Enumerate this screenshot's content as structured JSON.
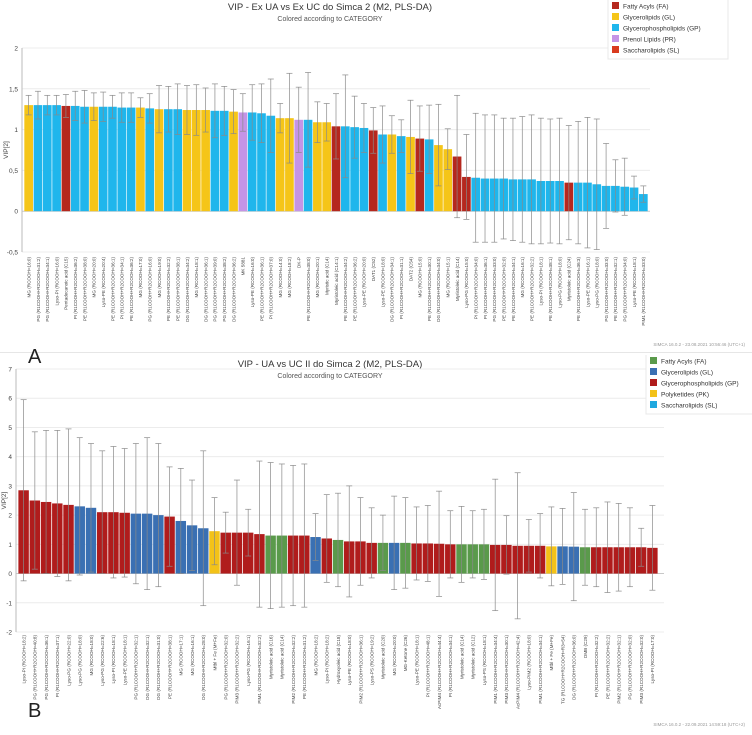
{
  "chart_data": [
    {
      "type": "bar",
      "panel_label": "A",
      "title": "VIP - Ex UA vs Ex UC do Simca 2 (M2, PLS-DA)",
      "subtitle": "Colored according to CATEGORY",
      "ylabel": "VIP[2]",
      "ylim": [
        -0.5,
        2
      ],
      "yticks": [
        -0.5,
        0,
        0.5,
        1,
        1.5,
        2
      ],
      "ytick_labels": [
        "-0,5",
        "0",
        "0,5",
        "1",
        "1,5",
        "2"
      ],
      "footer": "SIMCA 16.0.2 - 23.08.2021 10:56:46 (UTC+1)",
      "legend_position": "top-right",
      "legend": [
        {
          "key": "FA",
          "label": "Fatty Acyls (FA)",
          "color": "#b5281e"
        },
        {
          "key": "GL",
          "label": "Glycerolipids (GL)",
          "color": "#f5c518"
        },
        {
          "key": "GP",
          "label": "Glycerophospholipids (GP)",
          "color": "#1fb6ec"
        },
        {
          "key": "PR",
          "label": "Prenol Lipids (PR)",
          "color": "#c594e6"
        },
        {
          "key": "SL",
          "label": "Saccharolipids (SL)",
          "color": "#d93b1f"
        }
      ],
      "categories": [
        "MG (RCOOH=16:0)",
        "PG (R1COOH+R2COOH=31:2)",
        "PG (R1COOH+R2COOH=34:1)",
        "Lyso-PI (RCOOH=16:0)",
        "Pentadecanoic acid (C15)",
        "PI (R1COOH+R2COOH=36:2)",
        "PE (R1COOH+R2COOH=38:0)",
        "MG (RCOOH=20:0)",
        "Lyso-PE (RCOOH=20:4)",
        "PE (R1COOH+R2COOH=36:1)",
        "PI (R1COOH+R2COOH=34:1)",
        "PE (R1COOH+R2COOH=36:2)",
        "MG (RCOOH=17:0)",
        "PG (R1COOH+R2COOH=16:0)",
        "MG (RCOOH=19:0)",
        "PE (R1COOH+R2COOH=32:2)",
        "PE (R1COOH+R2COOH=38:1)",
        "DG (R1COOH+R2COOH=34:2)",
        "MG (RCOOH=18:1)",
        "DG (R1COOH+R2COOH=36:1)",
        "PG (R1COOH+R2COOH=39:0)",
        "PG (R1COOH+R2COOH=38:2)",
        "DG (R1COOH+R2COOH=36:2)",
        "MK 5881",
        "Lyso-PE (RCOOH=16:0)",
        "PE (R1COOH+R2COOH=36:1)",
        "PI (R1COOH+R2COOH=37:0)",
        "MG (RCOOH=14:0)",
        "MG (RCOOH=18:2)",
        "DK-P",
        "PE (R1COOH+R2COOH=38:0)",
        "MG (RCOOH=20:1)",
        "Myristic acid (C14)",
        "Myristoleic acid (C14:1)",
        "PE (R1COOH+R2COOH=34:2)",
        "PE (R1COOH+R2COOH=36:2)",
        "Lyso-PE (RCOOH=20:0)",
        "DAT1 (C52)",
        "Lyso-PE (RCOOH=18:0)",
        "DG (R1COOH+R2COOH=34:1)",
        "PI (R1COOH+R2COOH=31:1)",
        "DAT2 (C54)",
        "MG (RCOOH=15:0)",
        "PE (R1COOH+R2COOH=30:1)",
        "DG (R1COOH+R2COOH=34:0)",
        "MG (RCOOH=15:1)",
        "Myristoleic acid (C14)",
        "Lyso-PG (RCOOH=15:0)",
        "PI (R1COOH+R2COOH=34:0)",
        "PI (R1COOH+R2COOH=36:1)",
        "PG (R1COOH+R2COOH=33:0)",
        "PE (R1COOH+R2COOH=32:0)",
        "PE (R1COOH+R2COOH=34:1)",
        "MG (RCOOH=16:1)",
        "PE (R1COOH+R2COOH=32:2)",
        "Lyso-PI (RCOOH=18:1)",
        "PE (R1COOH+R2COOH=38:1)",
        "Lyso-PG (RCOOH=18:0)",
        "Myristoleic acid (C24)",
        "PE (R1COOH+R2COOH=36:3)",
        "Lyso-PE (RCOOH=16:1)",
        "Lyso-PG (RCOOH=18:0)",
        "PG (R1COOH+R2COOH=33:0)",
        "PE (R1COOH+R2COOH=32:1)",
        "PG (R1COOH+R2COOH=34:0)",
        "Lyso-PE (RCOOH=18:1)",
        "PIM1 (R1COOH+R2COOH=33:0)"
      ],
      "values": [
        1.3,
        1.3,
        1.3,
        1.3,
        1.29,
        1.29,
        1.28,
        1.28,
        1.28,
        1.28,
        1.27,
        1.27,
        1.27,
        1.26,
        1.25,
        1.25,
        1.25,
        1.24,
        1.24,
        1.24,
        1.23,
        1.23,
        1.22,
        1.21,
        1.21,
        1.2,
        1.17,
        1.14,
        1.14,
        1.12,
        1.12,
        1.09,
        1.09,
        1.04,
        1.04,
        1.03,
        1.02,
        0.99,
        0.94,
        0.94,
        0.92,
        0.91,
        0.89,
        0.88,
        0.81,
        0.76,
        0.67,
        0.42,
        0.41,
        0.4,
        0.4,
        0.4,
        0.39,
        0.39,
        0.39,
        0.37,
        0.37,
        0.37,
        0.35,
        0.35,
        0.35,
        0.33,
        0.31,
        0.31,
        0.3,
        0.29,
        0.21
      ],
      "errors": [
        0.12,
        0.17,
        0.12,
        0.12,
        0.14,
        0.18,
        0.2,
        0.17,
        0.18,
        0.14,
        0.18,
        0.18,
        0.12,
        0.18,
        0.29,
        0.28,
        0.31,
        0.3,
        0.31,
        0.27,
        0.33,
        0.3,
        0.27,
        0.23,
        0.34,
        0.36,
        0.45,
        0.18,
        0.55,
        0.4,
        0.58,
        0.25,
        0.23,
        0.4,
        0.63,
        0.38,
        0.3,
        0.28,
        0.35,
        0.23,
        0.2,
        0.45,
        0.4,
        0.42,
        0.5,
        0.25,
        0.75,
        0.52,
        0.79,
        0.78,
        0.78,
        0.74,
        0.75,
        0.77,
        0.79,
        0.77,
        0.76,
        0.77,
        0.7,
        0.75,
        0.8,
        0.8,
        0.52,
        0.32,
        0.35,
        0.14,
        0.1
      ],
      "groups": [
        "GL",
        "GP",
        "GP",
        "GP",
        "FA",
        "GP",
        "GP",
        "GL",
        "GP",
        "GP",
        "GP",
        "GP",
        "GL",
        "GP",
        "GL",
        "GP",
        "GP",
        "GL",
        "GL",
        "GL",
        "GP",
        "GP",
        "GL",
        "PR",
        "GP",
        "GP",
        "GP",
        "GL",
        "GL",
        "PR",
        "GP",
        "GL",
        "GL",
        "FA",
        "GP",
        "GP",
        "GP",
        "FA",
        "GP",
        "GL",
        "GP",
        "GL",
        "FA",
        "GP",
        "GL",
        "GL",
        "FA",
        "FA",
        "GP",
        "GP",
        "GP",
        "GP",
        "GP",
        "GP",
        "GP",
        "GP",
        "GP",
        "GP",
        "FA",
        "GP",
        "GP",
        "GP",
        "GP",
        "GP",
        "GP",
        "GP",
        "GP"
      ]
    },
    {
      "type": "bar",
      "panel_label": "B",
      "title": "VIP - UA vs UC II do Simca 2 (M2, PLS-DA)",
      "subtitle": "Colored according to CATEGORY",
      "ylabel": "VIP[2]",
      "ylim": [
        -2,
        7
      ],
      "yticks": [
        -2,
        -1,
        0,
        1,
        2,
        3,
        4,
        5,
        6,
        7
      ],
      "ytick_labels": [
        "-2",
        "-1",
        "0",
        "1",
        "2",
        "3",
        "4",
        "5",
        "6",
        "7"
      ],
      "footer": "SIMCA 16.0.2 - 22.09.2021 14:59:18 (UTC+2)",
      "legend_position": "top-right",
      "legend": [
        {
          "key": "FA",
          "label": "Fatty Acyls (FA)",
          "color": "#5a9a4b"
        },
        {
          "key": "GL",
          "label": "Glycerolipids (GL)",
          "color": "#3a70b3"
        },
        {
          "key": "GP",
          "label": "Glycerophospholipids (GP)",
          "color": "#b01c1c"
        },
        {
          "key": "PK",
          "label": "Polyketides (PK)",
          "color": "#f3c218"
        },
        {
          "key": "SL",
          "label": "Saccharolipids (SL)",
          "color": "#1fa8df"
        }
      ],
      "categories": [
        "Lyso-PI (RCOOH=18:2)",
        "PG (R1COOH+R2COOH=40:8)",
        "PG (R1COOH+R2COOH=36:1)",
        "PI (R1COOH+R2COOH=37:1)",
        "Lyso-PG (RCOOH=22:0)",
        "Lyso-PG (RCOOH=18:0)",
        "MG (RCOOH=18:0)",
        "Lyso-PG (RCOOH=22:6)",
        "Lyso-PI (RCOOH=18:1)",
        "Lyso-PE (RCOOH=18:1)",
        "PG (R1COOH+R2COOH=32:1)",
        "DG (R1COOH+R2COOH=32:1)",
        "DG (R1COOH+R2COOH=31:0)",
        "PE (R1COOH+R2COOH=38:1)",
        "MG (RCOOH=17:1)",
        "MG (RCOOH=16:1)",
        "DG (R1COOH+R2COOH=28:0)",
        "Mtbl + Fe (M+Fe)",
        "PG (R1COOH+R2COOH=32:0)",
        "PIM3 (R1COOH+R2COOH=32:2)",
        "Lyso-PG (RCOOH=16:1)",
        "PIM1 (R1COOH+R2COOH=32:2)",
        "Myristoleic acid (C16)",
        "Myristoleic acid (C14)",
        "PIM2 (R1COOH+R2COOH=32:2)",
        "PE (R1COOH+R2COOH=31:2)",
        "MG (RCOOH=18:2)",
        "Lyso-PI (RCOOH=18:2)",
        "Hydroxyoleic acid (C18)",
        "Lyso-PE (RCOOH=18:0)",
        "PIM2 (R1COOH+R2COOH=36:1)",
        "Lyso-PS (RCOOH=19:2)",
        "Myristoleic acid (C20)",
        "MG (RCOOH=20:0)",
        "MG-Ketone (C26)",
        "Lyso-PE (RCOOH=18:1)",
        "PI (R1COOH+R2COOH=48:1)",
        "AcPIM4 (R1COOH+R2COOH=44:4)",
        "PI (R1COOH+R2COOH=34:1)",
        "Myristoleic acid (C14)",
        "Myristoleic acid (C12)",
        "Lyso-PS (RCOOH=18:1)",
        "PIM1 (R1COOH+R2COOH=34:4)",
        "PIM3 (R1COOH+R2COOH=30:1)",
        "AcPIM4 (R1COOH+R2COOH=42:4)",
        "Lyso-PIM2 (RCOOH=18:0)",
        "PIM1 (R1COOH+R2COOH=34:1)",
        "Mtbl + Fe (M+Fe)",
        "TG (R1COOH+R2COOH=R3=54)",
        "DG (R1COOH+R2COOH=36:0)",
        "DMB (C29)",
        "PI (R1COOH+R2COOH=32:2)",
        "PE (R1COOH+R2COOH=32:2)",
        "PIM2 (R1COOH+R2COOH=32:1)",
        "PG (R1COOH+R2COOH=32:0)",
        "PIM3 (R1COOH+R2COOH=32:0)",
        "Lyso-PI (RCOOH=17:0)"
      ],
      "values": [
        2.85,
        2.5,
        2.45,
        2.4,
        2.35,
        2.3,
        2.25,
        2.1,
        2.1,
        2.08,
        2.05,
        2.05,
        2.0,
        1.95,
        1.8,
        1.65,
        1.55,
        1.45,
        1.4,
        1.4,
        1.4,
        1.35,
        1.3,
        1.3,
        1.3,
        1.3,
        1.25,
        1.2,
        1.15,
        1.1,
        1.1,
        1.05,
        1.05,
        1.05,
        1.05,
        1.03,
        1.03,
        1.02,
        1.0,
        1.0,
        1.0,
        1.0,
        0.98,
        0.98,
        0.95,
        0.95,
        0.95,
        0.93,
        0.93,
        0.92,
        0.9,
        0.9,
        0.9,
        0.9,
        0.9,
        0.9,
        0.88
      ],
      "errors": [
        3.1,
        2.35,
        2.45,
        2.5,
        2.6,
        2.35,
        2.2,
        2.1,
        2.25,
        2.2,
        2.4,
        2.6,
        2.45,
        1.7,
        1.8,
        1.55,
        2.65,
        1.15,
        0.7,
        1.8,
        0.8,
        2.5,
        2.5,
        2.45,
        2.4,
        2.45,
        0.8,
        1.5,
        1.6,
        1.9,
        1.5,
        1.2,
        0.95,
        1.6,
        1.55,
        1.25,
        1.3,
        1.8,
        1.15,
        1.3,
        1.15,
        1.2,
        2.25,
        1.0,
        2.5,
        0.9,
        1.1,
        1.35,
        1.3,
        1.85,
        1.3,
        1.35,
        1.55,
        1.5,
        1.35,
        0.65,
        1.45
      ],
      "groups": [
        "GP",
        "GP",
        "GP",
        "GP",
        "GP",
        "GL",
        "GL",
        "GP",
        "GP",
        "GP",
        "GL",
        "GL",
        "GL",
        "GP",
        "GL",
        "GL",
        "GL",
        "PK",
        "GP",
        "GP",
        "GP",
        "GP",
        "FA",
        "FA",
        "GP",
        "GP",
        "GL",
        "GP",
        "FA",
        "GP",
        "GP",
        "GP",
        "FA",
        "GL",
        "FA",
        "GP",
        "GP",
        "GP",
        "GP",
        "FA",
        "FA",
        "FA",
        "GP",
        "GP",
        "GP",
        "GP",
        "GP",
        "PK",
        "GL",
        "GL",
        "FA",
        "GP",
        "GP",
        "GP",
        "GP",
        "GP",
        "GP"
      ]
    }
  ]
}
